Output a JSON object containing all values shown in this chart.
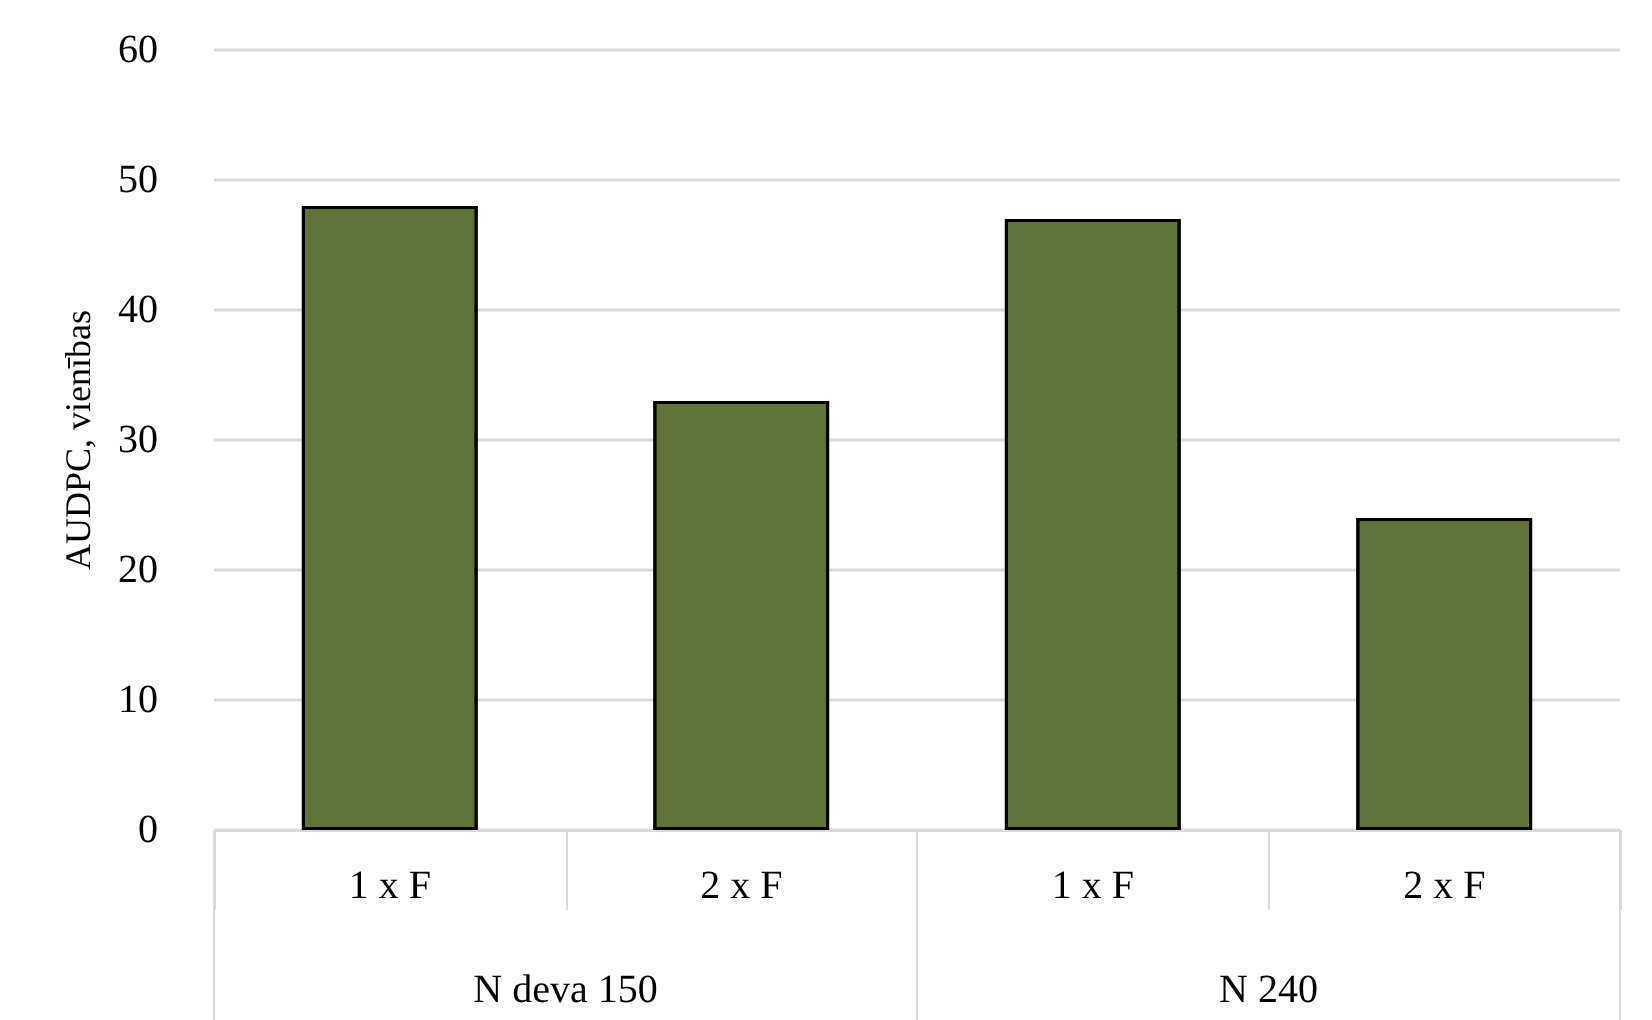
{
  "chart_data": {
    "type": "bar",
    "ylabel": "AUDPC, vienības",
    "categories": [
      "1 x F",
      "2 x F",
      "1 x F",
      "2 x F"
    ],
    "values": [
      48,
      33,
      47,
      24
    ],
    "color": "#5f7436",
    "ylim": [
      0,
      60
    ],
    "yticks": [
      0,
      10,
      20,
      30,
      40,
      50,
      60
    ],
    "grid": "y",
    "annotations": [
      "N deva 150",
      "N 240"
    ]
  }
}
